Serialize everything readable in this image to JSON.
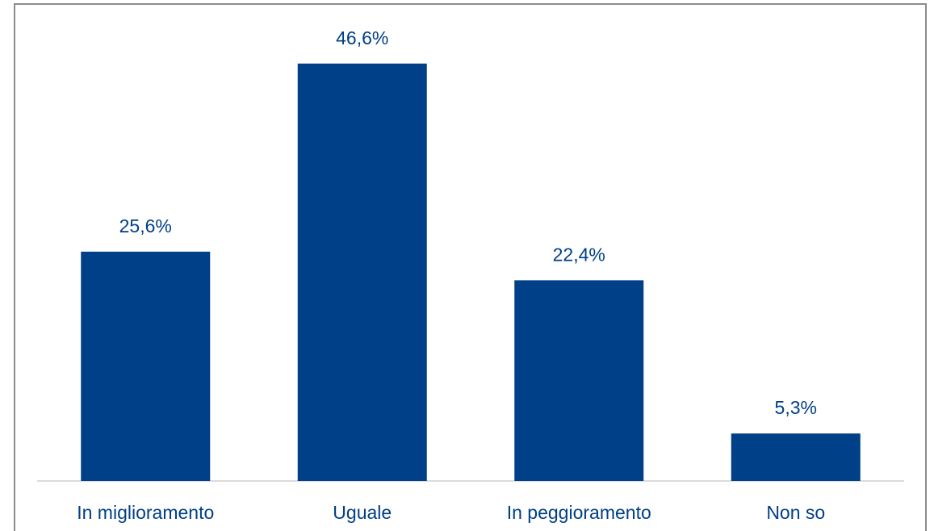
{
  "chart_data": {
    "type": "bar",
    "categories": [
      "In miglioramento",
      "Uguale",
      "In peggioramento",
      "Non so"
    ],
    "values": [
      25.6,
      46.6,
      22.4,
      5.3
    ],
    "value_labels": [
      "25,6%",
      "46,6%",
      "22,4%",
      "5,3%"
    ],
    "color": "#004088"
  }
}
